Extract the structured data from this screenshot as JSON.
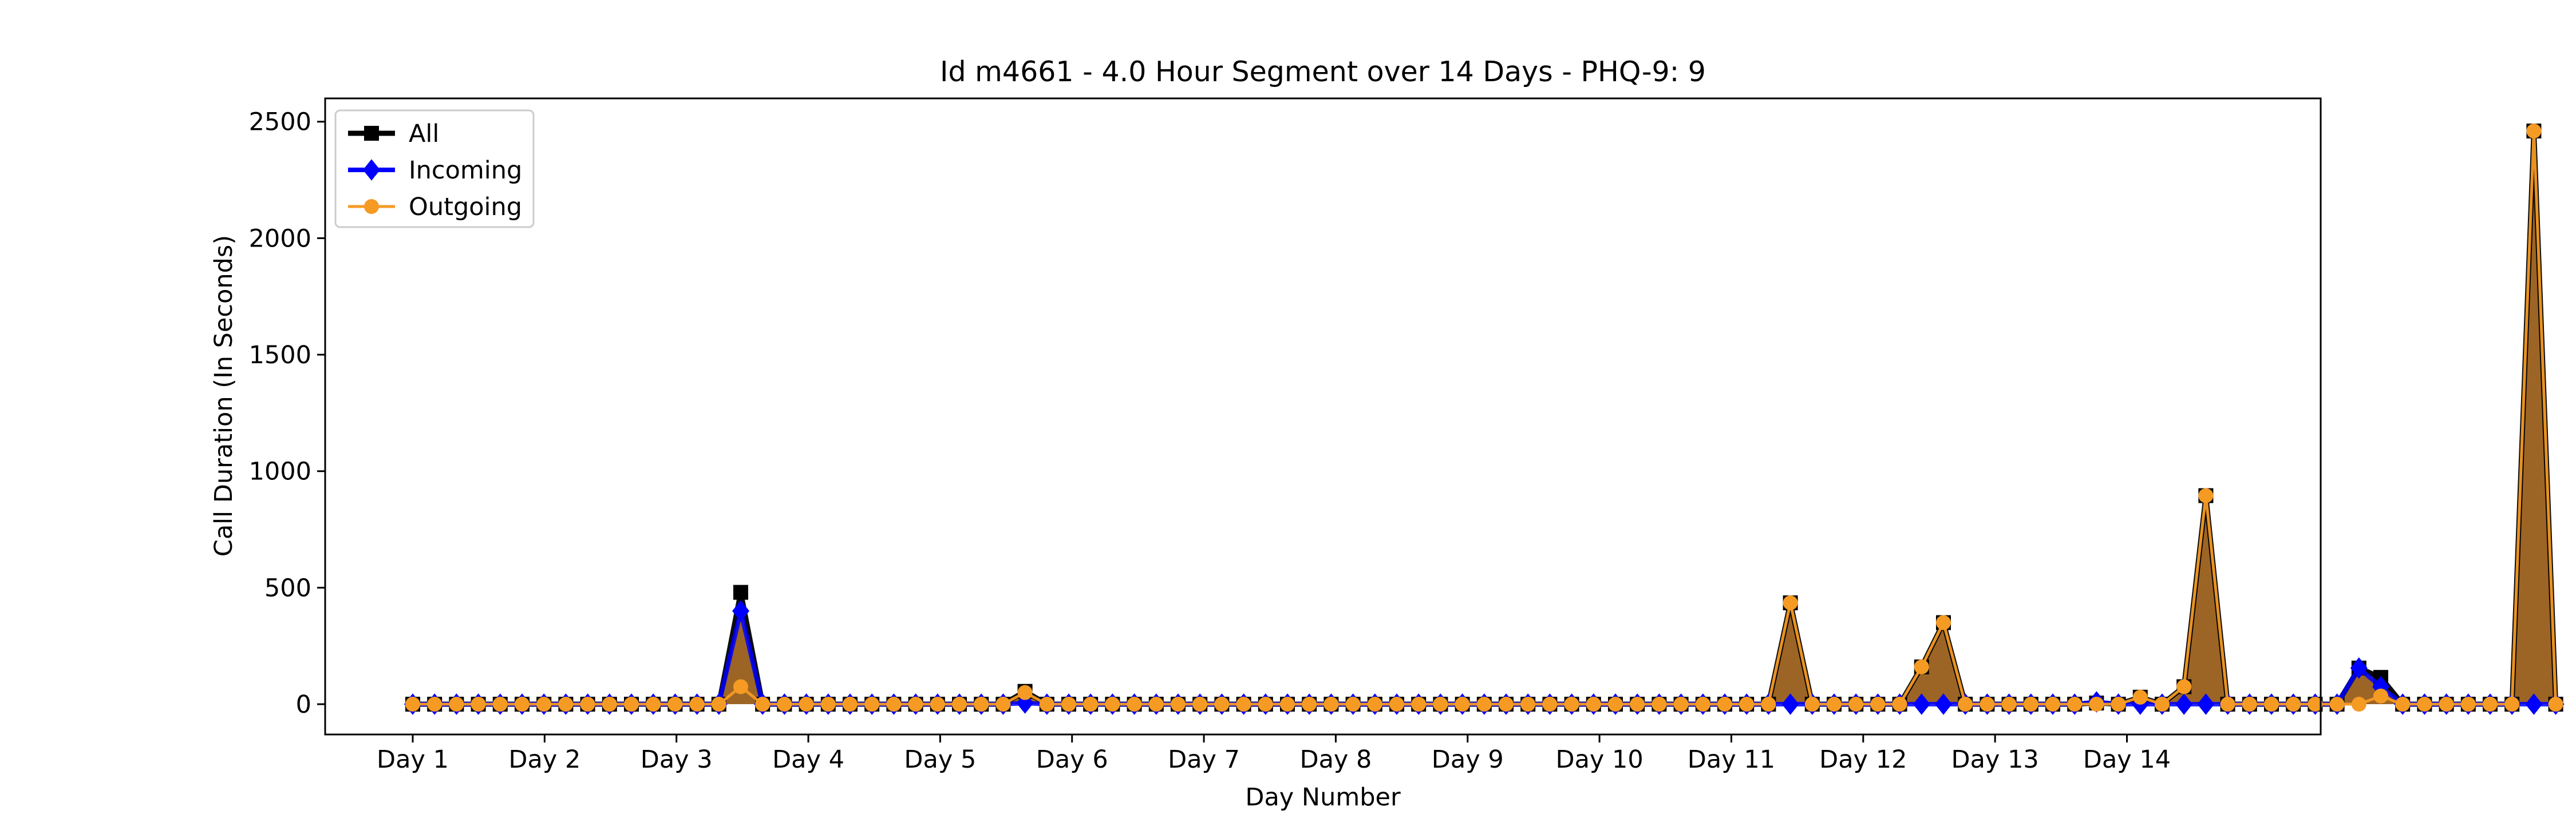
{
  "chart_data": {
    "type": "line",
    "title": "Id m4661 - 4.0 Hour Segment over 14 Days - PHQ-9: 9",
    "xlabel": "Day Number",
    "ylabel": "Call Duration (In Seconds)",
    "x_tick_labels": [
      "Day 1",
      "Day 2",
      "Day 3",
      "Day 4",
      "Day 5",
      "Day 6",
      "Day 7",
      "Day 8",
      "Day 9",
      "Day 10",
      "Day 11",
      "Day 12",
      "Day 13",
      "Day 14"
    ],
    "y_ticks": [
      0,
      500,
      1000,
      1500,
      2000,
      2500
    ],
    "ylim": [
      -130,
      2600
    ],
    "grid": false,
    "legend_position": "top-left",
    "series": [
      {
        "name": "All",
        "color": "#000000",
        "marker": "square",
        "values": [
          0,
          0,
          0,
          0,
          0,
          0,
          0,
          0,
          0,
          0,
          0,
          0,
          0,
          0,
          0,
          480,
          0,
          0,
          0,
          0,
          0,
          0,
          0,
          0,
          0,
          0,
          0,
          0,
          55,
          0,
          0,
          0,
          0,
          0,
          0,
          0,
          0,
          0,
          0,
          0,
          0,
          0,
          0,
          0,
          0,
          0,
          0,
          0,
          0,
          0,
          0,
          0,
          0,
          0,
          0,
          0,
          0,
          0,
          0,
          0,
          0,
          0,
          0,
          435,
          0,
          0,
          0,
          0,
          0,
          160,
          350,
          0,
          0,
          0,
          0,
          0,
          0,
          5,
          0,
          30,
          0,
          75,
          895,
          0,
          0,
          0,
          0,
          0,
          0,
          155,
          115,
          0,
          0,
          0,
          0,
          0,
          0,
          2460,
          0
        ]
      },
      {
        "name": "Incoming",
        "color": "#0000ff",
        "marker": "diamond",
        "values": [
          0,
          0,
          0,
          0,
          0,
          0,
          0,
          0,
          0,
          0,
          0,
          0,
          0,
          0,
          0,
          400,
          0,
          0,
          0,
          0,
          0,
          0,
          0,
          0,
          0,
          0,
          0,
          0,
          5,
          0,
          0,
          0,
          0,
          0,
          0,
          0,
          0,
          0,
          0,
          0,
          0,
          0,
          0,
          0,
          0,
          0,
          0,
          0,
          0,
          0,
          0,
          0,
          0,
          0,
          0,
          0,
          0,
          0,
          0,
          0,
          0,
          0,
          0,
          0,
          0,
          0,
          0,
          0,
          0,
          0,
          0,
          0,
          0,
          0,
          0,
          0,
          0,
          10,
          0,
          0,
          0,
          0,
          0,
          0,
          0,
          0,
          0,
          0,
          0,
          155,
          75,
          0,
          0,
          0,
          0,
          0,
          0,
          0,
          0
        ]
      },
      {
        "name": "Outgoing",
        "color": "#f59a23",
        "marker": "circle",
        "values": [
          0,
          0,
          0,
          0,
          0,
          0,
          0,
          0,
          0,
          0,
          0,
          0,
          0,
          0,
          0,
          75,
          0,
          0,
          0,
          0,
          0,
          0,
          0,
          0,
          0,
          0,
          0,
          0,
          50,
          0,
          0,
          0,
          0,
          0,
          0,
          0,
          0,
          0,
          0,
          0,
          0,
          0,
          0,
          0,
          0,
          0,
          0,
          0,
          0,
          0,
          0,
          0,
          0,
          0,
          0,
          0,
          0,
          0,
          0,
          0,
          0,
          0,
          0,
          435,
          0,
          0,
          0,
          0,
          0,
          160,
          350,
          0,
          0,
          0,
          0,
          0,
          0,
          0,
          0,
          30,
          0,
          75,
          895,
          0,
          0,
          0,
          0,
          0,
          0,
          0,
          35,
          0,
          0,
          0,
          0,
          0,
          0,
          2460,
          0
        ]
      }
    ],
    "fill_between": {
      "series": "All",
      "color": "#8b4a00"
    }
  }
}
